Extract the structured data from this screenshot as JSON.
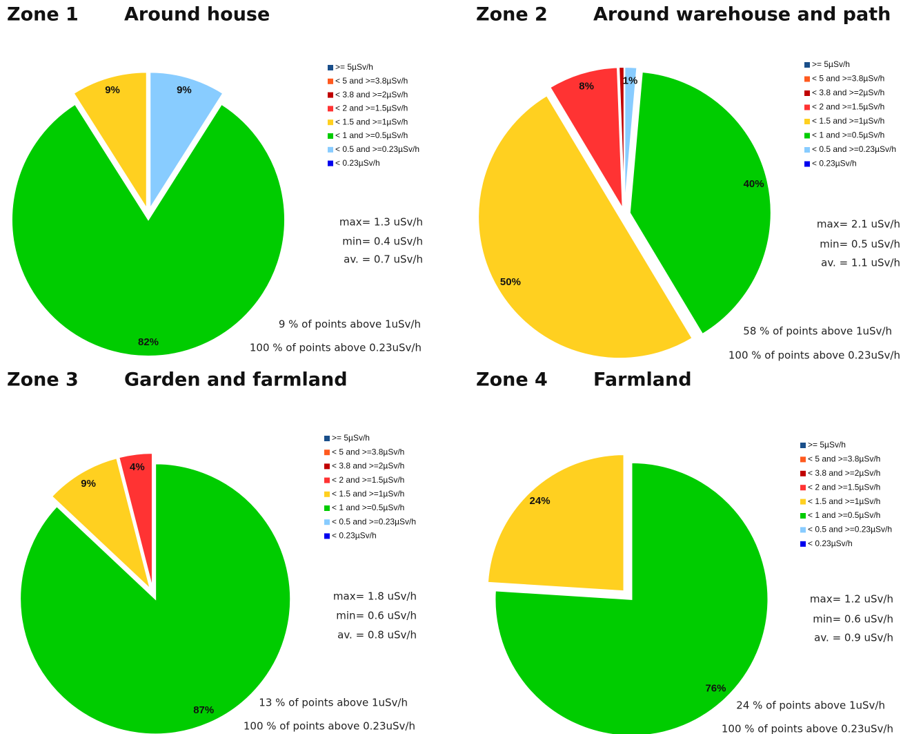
{
  "chart_data": [
    {
      "type": "pie",
      "title": "Zone 1",
      "subtitle": "Around house",
      "categories": [
        ">= 5µSv/h",
        "< 5 and >=3.8µSv/h",
        "< 3.8 and >=2µSv/h",
        "< 2 and >=1.5µSv/h",
        "< 1.5 and >=1µSv/h",
        "< 1 and >=0.5µSv/h",
        "< 0.5 and >=0.23µSv/h",
        "< 0.23µSv/h"
      ],
      "colors": [
        "#1a4f8a",
        "#ff5a1f",
        "#c00000",
        "#ff3333",
        "#ffd020",
        "#00cc00",
        "#88ccff",
        "#0000ee"
      ],
      "values": [
        0,
        0,
        0,
        0,
        9,
        82,
        9,
        0
      ],
      "value_labels": [
        null,
        null,
        null,
        null,
        "9%",
        "82%",
        "9%",
        null
      ],
      "annotations": [
        "max= 1.3 uSv/h",
        "min= 0.4 uSv/h",
        "av. =  0.7 uSv/h",
        "9 % of points above 1uSv/h",
        "100 % of points above 0.23uSv/h"
      ]
    },
    {
      "type": "pie",
      "title": "Zone 2",
      "subtitle": "Around warehouse and path",
      "categories": [
        ">= 5µSv/h",
        "< 5 and >=3.8µSv/h",
        "< 3.8 and >=2µSv/h",
        "< 2 and >=1.5µSv/h",
        "< 1.5 and >=1µSv/h",
        "< 1 and >=0.5µSv/h",
        "< 0.5 and >=0.23µSv/h",
        "< 0.23µSv/h"
      ],
      "colors": [
        "#1a4f8a",
        "#ff5a1f",
        "#c00000",
        "#ff3333",
        "#ffd020",
        "#00cc00",
        "#88ccff",
        "#0000ee"
      ],
      "values": [
        0,
        0,
        0.6,
        8,
        50,
        40,
        1.4,
        0
      ],
      "value_labels": [
        null,
        null,
        null,
        "8%",
        "50%",
        "40%",
        "1%",
        null
      ],
      "annotations": [
        "max= 2.1 uSv/h",
        "min= 0.5 uSv/h",
        "av. =  1.1 uSv/h",
        "58 % of points above 1uSv/h",
        "100 % of points above 0.23uSv/h"
      ]
    },
    {
      "type": "pie",
      "title": "Zone 3",
      "subtitle": "Garden and farmland",
      "categories": [
        ">= 5µSv/h",
        "< 5 and >=3.8µSv/h",
        "< 3.8 and >=2µSv/h",
        "< 2 and >=1.5µSv/h",
        "< 1.5 and >=1µSv/h",
        "< 1 and >=0.5µSv/h",
        "< 0.5 and >=0.23µSv/h",
        "< 0.23µSv/h"
      ],
      "colors": [
        "#1a4f8a",
        "#ff5a1f",
        "#c00000",
        "#ff3333",
        "#ffd020",
        "#00cc00",
        "#88ccff",
        "#0000ee"
      ],
      "values": [
        0,
        0,
        0,
        4,
        9,
        87,
        0,
        0
      ],
      "value_labels": [
        null,
        null,
        null,
        "4%",
        "9%",
        "87%",
        null,
        null
      ],
      "annotations": [
        "max= 1.8 uSv/h",
        "min= 0.6 uSv/h",
        "av. =  0.8 uSv/h",
        "13 % of points above 1uSv/h",
        "100 % of points above 0.23uSv/h"
      ]
    },
    {
      "type": "pie",
      "title": "Zone 4",
      "subtitle": "Farmland",
      "categories": [
        ">= 5µSv/h",
        "< 5 and >=3.8µSv/h",
        "< 3.8 and >=2µSv/h",
        "< 2 and >=1.5µSv/h",
        "< 1.5 and >=1µSv/h",
        "< 1 and >=0.5µSv/h",
        "< 0.5 and >=0.23µSv/h",
        "< 0.23µSv/h"
      ],
      "colors": [
        "#1a4f8a",
        "#ff5a1f",
        "#c00000",
        "#ff3333",
        "#ffd020",
        "#00cc00",
        "#88ccff",
        "#0000ee"
      ],
      "values": [
        0,
        0,
        0,
        0,
        24,
        76,
        0,
        0
      ],
      "value_labels": [
        null,
        null,
        null,
        null,
        "24%",
        "76%",
        null,
        null
      ],
      "annotations": [
        "max= 1.2 uSv/h",
        "min= 0.6 uSv/h",
        "av. =  0.9 uSv/h",
        "24 % of points above 1uSv/h",
        "100 % of points above 0.23uSv/h"
      ]
    }
  ]
}
